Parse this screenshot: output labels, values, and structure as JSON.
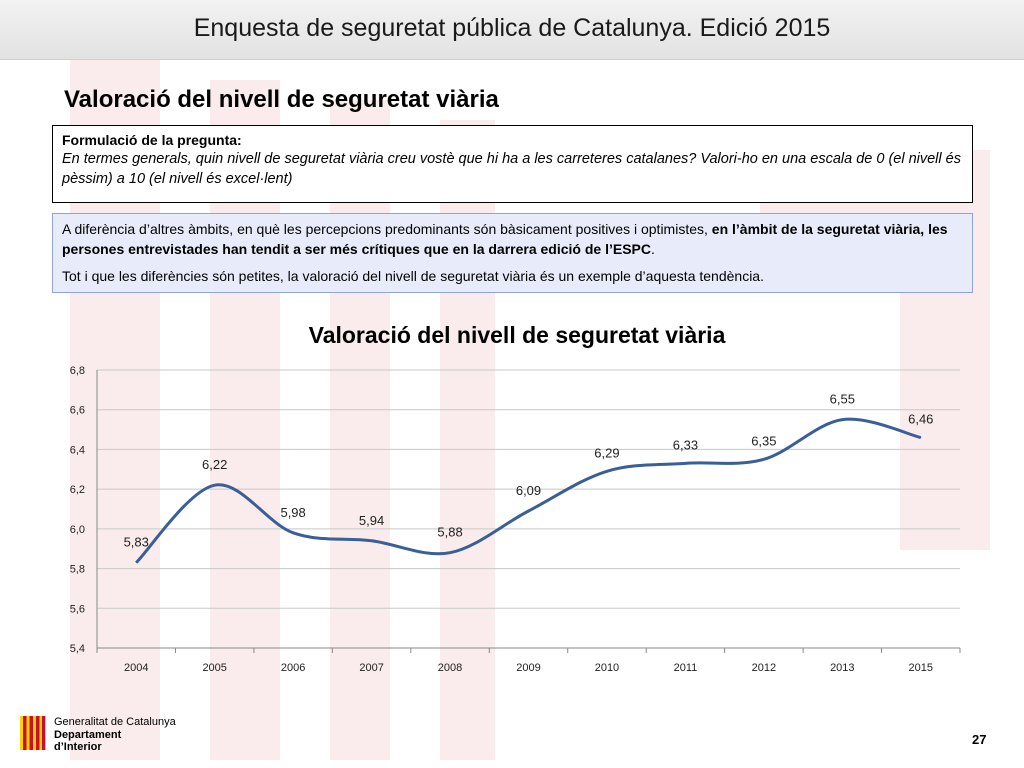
{
  "header": {
    "title": "Enquesta de seguretat pública de Catalunya. Edició 2015"
  },
  "section_title": "Valoració del nivell de seguretat viària",
  "question": {
    "label": "Formulació de la pregunta:",
    "text": "En termes generals, quin nivell de seguretat viària creu vostè que hi ha a les carreteres catalanes? Valori-ho en una escala de 0 (el nivell és pèssim) a 10 (el nivell és excel·lent)"
  },
  "info": {
    "p1_pre": "A diferència d’altres àmbits, en què les percepcions predominants són bàsicament positives i optimistes, ",
    "p1_bold": "en l’àmbit de la seguretat viària, les persones entrevistades han tendit a ser més crítiques que en la darrera edició de l’ESPC",
    "p1_post": ".",
    "p2": "Tot i que les diferències són petites, la valoració del nivell de seguretat viària és un exemple d’aquesta tendència."
  },
  "chart_data": {
    "type": "line",
    "title": "Valoració del nivell de seguretat viària",
    "xlabel": "",
    "ylabel": "",
    "categories": [
      "2004",
      "2005",
      "2006",
      "2007",
      "2008",
      "2009",
      "2010",
      "2011",
      "2012",
      "2013",
      "2015"
    ],
    "series": [
      {
        "values": [
          5.83,
          6.22,
          5.98,
          5.94,
          5.88,
          6.09,
          6.29,
          6.33,
          6.35,
          6.55,
          6.46
        ],
        "labels": [
          "5,83",
          "6,22",
          "5,98",
          "5,94",
          "5,88",
          "6,09",
          "6,29",
          "6,33",
          "6,35",
          "6,55",
          "6,46"
        ],
        "color": "#3a5f96"
      }
    ],
    "ylim": [
      5.4,
      6.8
    ],
    "yticks": [
      "5,4",
      "5,6",
      "5,8",
      "6,0",
      "6,2",
      "6,4",
      "6,6",
      "6,8"
    ],
    "grid": true,
    "smooth": true
  },
  "footer": {
    "logo_line1": "Generalitat de Catalunya",
    "logo_line2": "Departament",
    "logo_line3": "d’Interior",
    "logo_colors": {
      "stripe": "#c8102e",
      "field": "#ffd100"
    },
    "page_number": "27"
  }
}
